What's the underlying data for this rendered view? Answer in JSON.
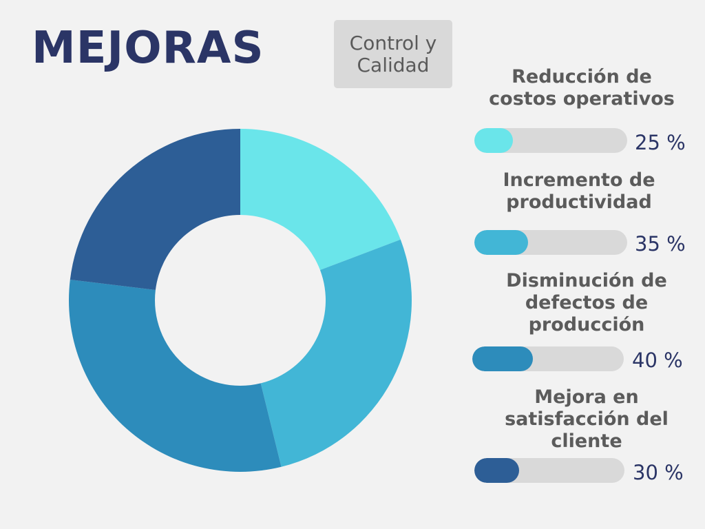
{
  "title": "MEJORAS",
  "tag": "Control y Calidad",
  "chart_data": {
    "type": "pie",
    "title": "MEJORAS",
    "series": [
      {
        "name": "Reducción de costos operativos",
        "value": 25,
        "label": "25 %",
        "color": "#6ae5ea"
      },
      {
        "name": "Incremento de productividad",
        "value": 35,
        "label": "35 %",
        "color": "#42b6d6"
      },
      {
        "name": "Disminución de defectos de producción",
        "value": 40,
        "label": "40 %",
        "color": "#2d8cbb"
      },
      {
        "name": "Mejora en satisfacción del cliente",
        "value": 30,
        "label": "30 %",
        "color": "#2d5e96"
      }
    ]
  }
}
